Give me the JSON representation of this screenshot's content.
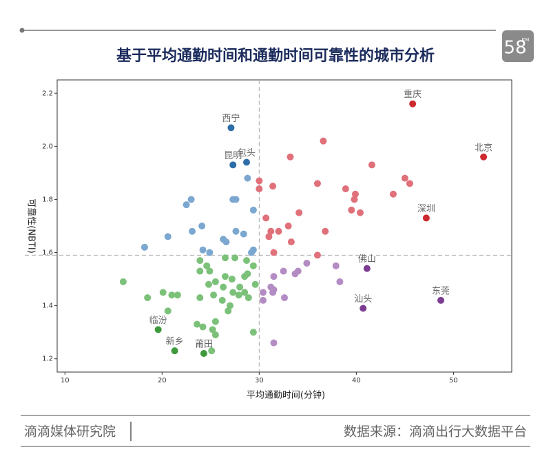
{
  "header": {
    "logo": "58",
    "logo_sub": "KM"
  },
  "chart_data": {
    "type": "scatter",
    "title": "基于平均通勤时间和通勤时间可靠性的城市分析",
    "x_label": "平均通勤时间(分钟)",
    "y_label": "可靠性(NBTI)",
    "xlim": [
      9.2,
      56.0
    ],
    "ylim": [
      1.15,
      2.25
    ],
    "xticks": [
      10,
      20,
      30,
      40,
      50
    ],
    "yticks": [
      1.2,
      1.4,
      1.6,
      1.8,
      {
        "value": 2,
        "label": "2.0"
      },
      2.2
    ],
    "vline": 30,
    "hline": 1.59,
    "series": [
      {
        "color": "#7ba7d0",
        "x": [
          23.0,
          22.5,
          20.6,
          18.2,
          23.1,
          24.1,
          24.2,
          24.9,
          26.3,
          26.6,
          27.3,
          27.6,
          27.6,
          28.4,
          28.8,
          29.4,
          29.4,
          29.2
        ],
        "values": [
          1.8,
          1.78,
          1.66,
          1.62,
          1.68,
          1.7,
          1.61,
          1.6,
          1.65,
          1.64,
          1.8,
          1.8,
          1.68,
          1.67,
          1.88,
          1.76,
          1.61,
          1.6
        ]
      },
      {
        "color": "#e0707a",
        "x": [
          30.0,
          30.0,
          31.4,
          33.2,
          36.6,
          41.6,
          36.0,
          38.9,
          39.9,
          39.8,
          39.5,
          40.4,
          43.8,
          45.0,
          45.5,
          30.7,
          34.1,
          33.0,
          32.0,
          31.2,
          31.0,
          36.8,
          33.3,
          36.0,
          31.5
        ],
        "values": [
          1.87,
          1.84,
          1.85,
          1.96,
          2.02,
          1.93,
          1.86,
          1.84,
          1.82,
          1.8,
          1.76,
          1.75,
          1.82,
          1.88,
          1.86,
          1.73,
          1.75,
          1.7,
          1.68,
          1.68,
          1.66,
          1.68,
          1.64,
          1.59,
          1.6
        ]
      },
      {
        "color": "#7cc17a",
        "x": [
          16.0,
          18.5,
          20.1,
          21.0,
          21.6,
          20.6,
          23.9,
          24.6,
          23.9,
          24.9,
          26.5,
          27.5,
          28.7,
          29.4,
          24.8,
          25.5,
          26.3,
          26.5,
          27.2,
          28.0,
          28.5,
          28.8,
          29.6,
          23.9,
          25.3,
          26.2,
          27.3,
          27.9,
          28.5,
          28.9,
          27.0,
          26.8,
          25.5,
          23.6,
          24.2,
          25.2,
          25.5,
          29.4,
          25.1
        ],
        "values": [
          1.49,
          1.43,
          1.45,
          1.44,
          1.44,
          1.38,
          1.57,
          1.55,
          1.53,
          1.53,
          1.58,
          1.58,
          1.57,
          1.55,
          1.48,
          1.49,
          1.47,
          1.51,
          1.5,
          1.47,
          1.51,
          1.52,
          1.48,
          1.43,
          1.44,
          1.42,
          1.45,
          1.44,
          1.45,
          1.43,
          1.4,
          1.38,
          1.34,
          1.33,
          1.32,
          1.31,
          1.29,
          1.3,
          1.23
        ]
      },
      {
        "color": "#b48cc4",
        "x": [
          30.4,
          30.4,
          31.2,
          31.5,
          31.4,
          32.5,
          32.6,
          33.7,
          34.0,
          34.9,
          37.9,
          38.3,
          31.5,
          31.5
        ],
        "values": [
          1.45,
          1.42,
          1.47,
          1.46,
          1.45,
          1.53,
          1.43,
          1.52,
          1.53,
          1.56,
          1.55,
          1.49,
          1.51,
          1.26
        ]
      },
      {
        "color": "#2e6ea8",
        "x": [
          27.1,
          28.7,
          27.3
        ],
        "values": [
          2.07,
          1.94,
          1.93
        ],
        "labels": [
          "西宁",
          "包头",
          "昆明"
        ]
      },
      {
        "color": "#cc2a2e",
        "x": [
          45.8,
          53.1,
          47.2
        ],
        "values": [
          2.16,
          1.96,
          1.73
        ],
        "labels": [
          "重庆",
          "北京",
          "深圳"
        ]
      },
      {
        "color": "#3e9a3c",
        "x": [
          19.6,
          21.3,
          24.3
        ],
        "values": [
          1.31,
          1.23,
          1.22
        ],
        "labels": [
          "临汾",
          "新乡",
          "莆田"
        ]
      },
      {
        "color": "#7c3c92",
        "x": [
          41.1,
          48.7,
          40.7
        ],
        "values": [
          1.54,
          1.42,
          1.39
        ],
        "labels": [
          "佛山",
          "东莞",
          "汕头"
        ]
      }
    ]
  },
  "footer": {
    "left": "滴滴媒体研究院",
    "right": "数据来源：滴滴出行大数据平台"
  }
}
